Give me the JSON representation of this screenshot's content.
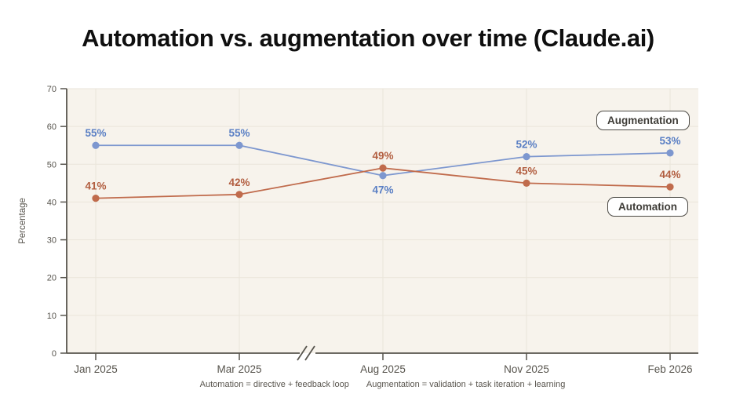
{
  "chart_data": {
    "type": "line",
    "title": "Automation vs. augmentation over time (Claude.ai)",
    "xlabel": "",
    "ylabel": "Percentage",
    "ylim": [
      0,
      70
    ],
    "yticks": [
      0,
      10,
      20,
      30,
      40,
      50,
      60,
      70
    ],
    "categories": [
      "Jan 2025",
      "Mar 2025",
      "Aug 2025",
      "Nov 2025",
      "Feb 2026"
    ],
    "axis_break": {
      "between": [
        "Mar 2025",
        "Aug 2025"
      ],
      "symbol": "//"
    },
    "grid": true,
    "legend_position": "inline-annotation-boxes",
    "series": [
      {
        "name": "Augmentation",
        "values": [
          55,
          55,
          47,
          52,
          53
        ],
        "point_labels": [
          "55%",
          "55%",
          "47%",
          "52%",
          "53%"
        ],
        "label_positions": [
          "above",
          "above",
          "below",
          "above",
          "above"
        ],
        "color": "#7d97cf",
        "label_color": "#5a7fc4"
      },
      {
        "name": "Automation",
        "values": [
          41,
          42,
          49,
          45,
          44
        ],
        "point_labels": [
          "41%",
          "42%",
          "49%",
          "45%",
          "44%"
        ],
        "label_positions": [
          "above",
          "above",
          "above",
          "above",
          "above"
        ],
        "color": "#c06b4c",
        "label_color": "#b25e40"
      }
    ],
    "footnotes": [
      "Automation = directive + feedback loop",
      "Augmentation = validation + task iteration + learning"
    ],
    "colors": {
      "plot_background": "#f7f3ec",
      "grid": "#eae5da",
      "axis": "#57544d",
      "tick_label": "#57544d",
      "title": "#0f0f0f"
    }
  }
}
